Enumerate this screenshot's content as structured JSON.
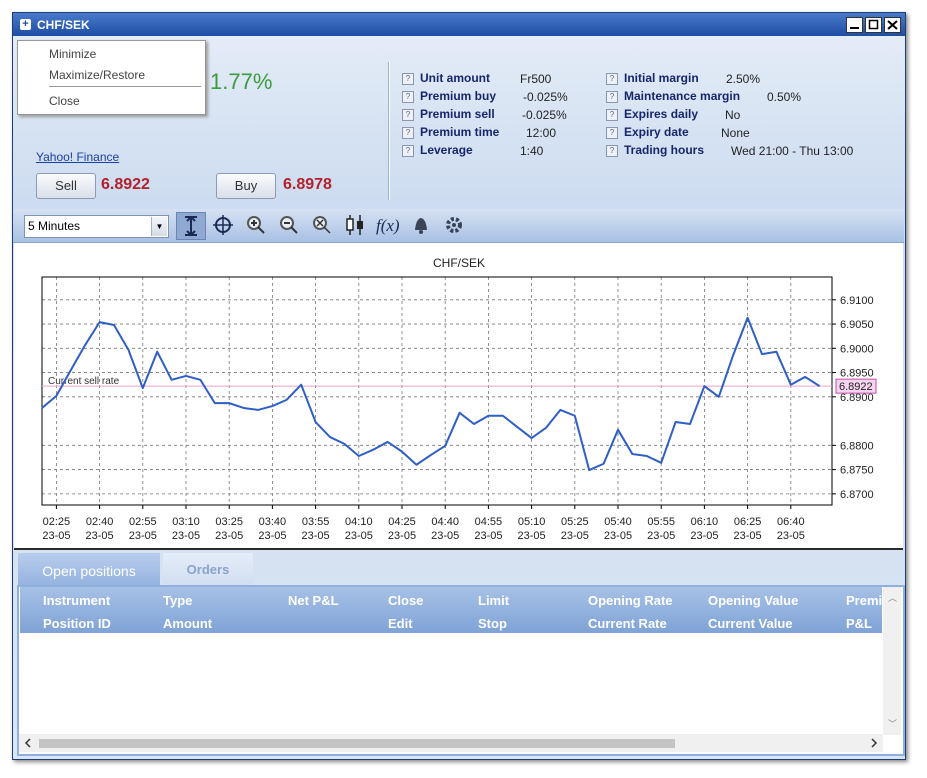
{
  "window": {
    "title": "CHF/SEK"
  },
  "context_menu": {
    "items": [
      "Minimize",
      "Maximize/Restore",
      "Close"
    ]
  },
  "instrument": {
    "change": "1.77%",
    "source_link": "Yahoo! Finance",
    "sell_button": "Sell",
    "sell_price": "6.8922",
    "buy_button": "Buy",
    "buy_price": "6.8978"
  },
  "details": {
    "left": [
      {
        "label": "Unit amount",
        "value": "Fr500"
      },
      {
        "label": "Premium buy",
        "value": "-0.025%"
      },
      {
        "label": "Premium sell",
        "value": "-0.025%"
      },
      {
        "label": "Premium time",
        "value": "12:00"
      },
      {
        "label": "Leverage",
        "value": "1:40"
      }
    ],
    "right": [
      {
        "label": "Initial margin",
        "value": "2.50%"
      },
      {
        "label": "Maintenance margin",
        "value": "0.50%"
      },
      {
        "label": "Expires daily",
        "value": "No"
      },
      {
        "label": "Expiry date",
        "value": "None"
      },
      {
        "label": "Trading hours",
        "value": "Wed 21:00 - Thu 13:00"
      }
    ]
  },
  "toolbar": {
    "interval": "5 Minutes",
    "function_icon": "f(x)"
  },
  "chart_data": {
    "type": "line",
    "title": "CHF/SEK",
    "categories": [
      null,
      "02:25",
      null,
      null,
      "02:40",
      null,
      null,
      "02:55",
      null,
      null,
      "03:10",
      null,
      null,
      "03:25",
      null,
      null,
      "03:40",
      null,
      null,
      "03:55",
      null,
      null,
      "04:10",
      null,
      null,
      "04:25",
      null,
      null,
      "04:40",
      null,
      null,
      "04:55",
      null,
      null,
      "05:10",
      null,
      null,
      "05:25",
      null,
      null,
      "05:40",
      null,
      null,
      "05:55",
      null,
      null,
      "06:10",
      null,
      null,
      "06:25",
      null,
      null,
      "06:40",
      null,
      null
    ],
    "category_dates": [
      null,
      "23-05",
      null,
      null,
      "23-05",
      null,
      null,
      "23-05",
      null,
      null,
      "23-05",
      null,
      null,
      "23-05",
      null,
      null,
      "23-05",
      null,
      null,
      "23-05",
      null,
      null,
      "23-05",
      null,
      null,
      "23-05",
      null,
      null,
      "23-05",
      null,
      null,
      "23-05",
      null,
      null,
      "23-05",
      null,
      null,
      "23-05",
      null,
      null,
      "23-05",
      null,
      null,
      "23-05",
      null,
      null,
      "23-05",
      null,
      null,
      "23-05",
      null,
      null,
      "23-05",
      null,
      null
    ],
    "values": [
      6.8877,
      6.8902,
      6.8955,
      6.9007,
      6.9054,
      6.9048,
      6.8997,
      6.8918,
      6.8993,
      6.8935,
      6.8943,
      6.8935,
      6.8887,
      6.8887,
      6.8877,
      6.8873,
      6.8881,
      6.8894,
      6.8925,
      6.8848,
      6.8817,
      6.8803,
      6.8778,
      6.8791,
      6.8807,
      6.8787,
      6.876,
      6.878,
      6.8799,
      6.8867,
      6.8844,
      6.8861,
      6.8861,
      6.8838,
      6.8815,
      6.8836,
      6.8873,
      6.8861,
      6.8749,
      6.8762,
      6.8832,
      6.8782,
      6.8778,
      6.8764,
      6.8848,
      6.8844,
      6.8922,
      6.89,
      6.8986,
      6.9063,
      6.8988,
      6.8993,
      6.8925,
      6.8941,
      6.8922
    ],
    "color": "#2f5fc4",
    "ylim": [
      6.8677,
      6.9147
    ],
    "yticks": [
      {
        "value": 6.87,
        "label": "6.8700"
      },
      {
        "value": 6.875,
        "label": "6.8750"
      },
      {
        "value": 6.88,
        "label": "6.8800"
      },
      {
        "value": 6.89,
        "label": "6.8900"
      },
      {
        "value": 6.895,
        "label": "6.8950"
      },
      {
        "value": 6.9,
        "label": "6.9000"
      },
      {
        "value": 6.905,
        "label": "6.9050"
      },
      {
        "value": 6.91,
        "label": "6.9100"
      }
    ],
    "grid": true,
    "current_sell_rate": {
      "label": "Current sell rate",
      "value": 6.8922,
      "color": "#e7a3cf"
    }
  },
  "positions": {
    "tabs": [
      "Open positions",
      "Orders"
    ],
    "columns": [
      {
        "line1": "Instrument",
        "line2": "Position ID"
      },
      {
        "line1": "Type",
        "line2": "Amount"
      },
      {
        "line1": "Net P&L"
      },
      {
        "line1": "Close",
        "line2": "Edit"
      },
      {
        "line1": "Limit",
        "line2": "Stop"
      },
      {
        "line1": "Opening Rate",
        "line2": "Current Rate"
      },
      {
        "line1": "Opening Value",
        "line2": "Current Value"
      },
      {
        "line1": "Premi",
        "line2": "P&L"
      }
    ]
  }
}
